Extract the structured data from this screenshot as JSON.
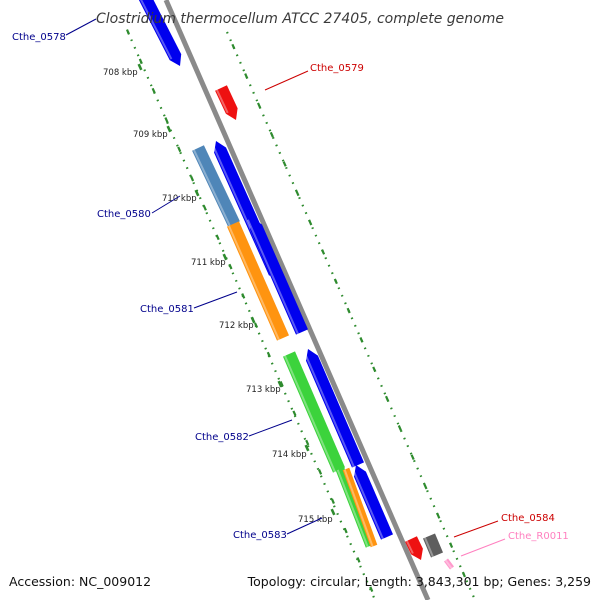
{
  "title": "Clostridium thermocellum ATCC 27405, complete genome",
  "footer": {
    "accession": "Accession: NC_009012",
    "summary": "Topology: circular; Length: 3,843,301 bp; Genes: 3,259"
  },
  "ticks": [
    "708 kbp",
    "709 kbp",
    "710 kbp",
    "711 kbp",
    "712 kbp",
    "713 kbp",
    "714 kbp",
    "715 kbp"
  ],
  "gene_labels": {
    "g0578": "Cthe_0578",
    "g0579": "Cthe_0579",
    "g0580": "Cthe_0580",
    "g0581": "Cthe_0581",
    "g0582": "Cthe_0582",
    "g0583": "Cthe_0583",
    "g0584": "Cthe_0584",
    "gR0011": "Cthe_R0011"
  },
  "colors": {
    "backbone": "#8a8a8a",
    "tick_dots": "#2e8b2e",
    "cds_blue": "#0000ee",
    "cds_red": "#ee1111",
    "cds_steelblue": "#4f86b8",
    "cds_orange": "#ff9410",
    "cds_green": "#3cd33c",
    "cds_gray": "#5e5e5e",
    "rna_pink": "#ff99cc",
    "label_blue": "#00008b",
    "label_red": "#cc0000",
    "label_pink": "#ff7fbf"
  }
}
